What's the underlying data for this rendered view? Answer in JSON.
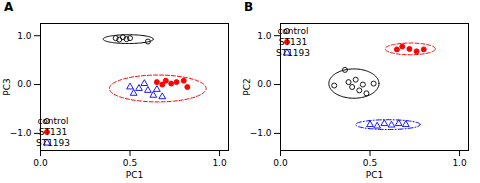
{
  "chart_data": [
    {
      "type": "scatter",
      "title": "A",
      "xlabel": "PC1",
      "ylabel": "PC3",
      "xlim": [
        0.0,
        1.05
      ],
      "ylim": [
        -1.35,
        1.25
      ],
      "xticks": [
        {
          "value": 0,
          "label": "0.0"
        },
        0.5,
        {
          "value": 1,
          "label": "1.0"
        }
      ],
      "yticks": [
        {
          "value": -1,
          "label": "−1.0"
        },
        {
          "value": 0,
          "label": "0.0"
        },
        {
          "value": 1,
          "label": "1.0"
        }
      ],
      "grid": false,
      "legend": "lower left",
      "series": [
        {
          "name": "control",
          "color": "black",
          "marker": "open_circle",
          "values": [
            [
              0.42,
              0.95
            ],
            [
              0.44,
              0.92
            ],
            [
              0.46,
              0.97
            ],
            [
              0.48,
              0.93
            ],
            [
              0.5,
              0.95
            ],
            [
              0.6,
              0.88
            ]
          ]
        },
        {
          "name": "ST131",
          "color": "red",
          "marker": "circle",
          "values": [
            [
              0.65,
              0.05
            ],
            [
              0.68,
              0.0
            ],
            [
              0.7,
              0.08
            ],
            [
              0.73,
              0.02
            ],
            [
              0.76,
              0.05
            ],
            [
              0.8,
              0.08
            ],
            [
              0.82,
              -0.05
            ]
          ]
        },
        {
          "name": "ST1193",
          "color": "blue",
          "marker": "open_triangle",
          "values": [
            [
              0.5,
              -0.05
            ],
            [
              0.52,
              -0.18
            ],
            [
              0.55,
              -0.08
            ],
            [
              0.58,
              0.02
            ],
            [
              0.6,
              -0.12
            ],
            [
              0.63,
              -0.22
            ],
            [
              0.65,
              -0.1
            ],
            [
              0.68,
              -0.25
            ]
          ]
        }
      ],
      "ellipses": [
        {
          "cx": 0.49,
          "cy": 0.93,
          "width": 0.28,
          "height": 0.18,
          "angle": 0,
          "color": "black",
          "line_style": "solid"
        },
        {
          "cx": 0.655,
          "cy": -0.08,
          "width": 0.54,
          "height": 0.55,
          "angle": -5,
          "color": "red",
          "line_style": "dashed"
        }
      ]
    },
    {
      "type": "scatter",
      "title": "B",
      "xlabel": "PC1",
      "ylabel": "PC2",
      "xlim": [
        0.0,
        1.05
      ],
      "ylim": [
        -1.35,
        1.25
      ],
      "xticks": [
        {
          "value": 0,
          "label": "0.0"
        },
        0.5,
        {
          "value": 1,
          "label": "1.0"
        }
      ],
      "yticks": [
        {
          "value": -1,
          "label": "−1.0"
        },
        {
          "value": 0,
          "label": "0.0"
        },
        {
          "value": 1,
          "label": "1.0"
        }
      ],
      "grid": false,
      "legend": "upper left",
      "series": [
        {
          "name": "control",
          "color": "black",
          "marker": "open_circle",
          "values": [
            [
              0.3,
              -0.02
            ],
            [
              0.36,
              0.3
            ],
            [
              0.38,
              0.05
            ],
            [
              0.4,
              -0.05
            ],
            [
              0.42,
              0.1
            ],
            [
              0.44,
              -0.12
            ],
            [
              0.46,
              0.0
            ],
            [
              0.48,
              -0.18
            ],
            [
              0.52,
              0.02
            ]
          ]
        },
        {
          "name": "ST131",
          "color": "red",
          "marker": "circle",
          "values": [
            [
              0.65,
              0.72
            ],
            [
              0.68,
              0.78
            ],
            [
              0.72,
              0.73
            ],
            [
              0.76,
              0.68
            ],
            [
              0.8,
              0.72
            ]
          ]
        },
        {
          "name": "ST1193",
          "color": "blue",
          "marker": "open_triangle",
          "values": [
            [
              0.5,
              -0.82
            ],
            [
              0.54,
              -0.85
            ],
            [
              0.58,
              -0.8
            ],
            [
              0.62,
              -0.83
            ],
            [
              0.66,
              -0.8
            ],
            [
              0.7,
              -0.82
            ]
          ]
        }
      ],
      "ellipses": [
        {
          "cx": 0.41,
          "cy": 0.02,
          "width": 0.28,
          "height": 0.6,
          "angle": 0,
          "color": "black",
          "line_style": "solid"
        },
        {
          "cx": 0.725,
          "cy": 0.73,
          "width": 0.28,
          "height": 0.24,
          "angle": 0,
          "color": "red",
          "line_style": "dashed"
        },
        {
          "cx": 0.6,
          "cy": -0.82,
          "width": 0.36,
          "height": 0.2,
          "angle": 0,
          "color": "blue",
          "line_style": "dashdot"
        }
      ]
    }
  ]
}
